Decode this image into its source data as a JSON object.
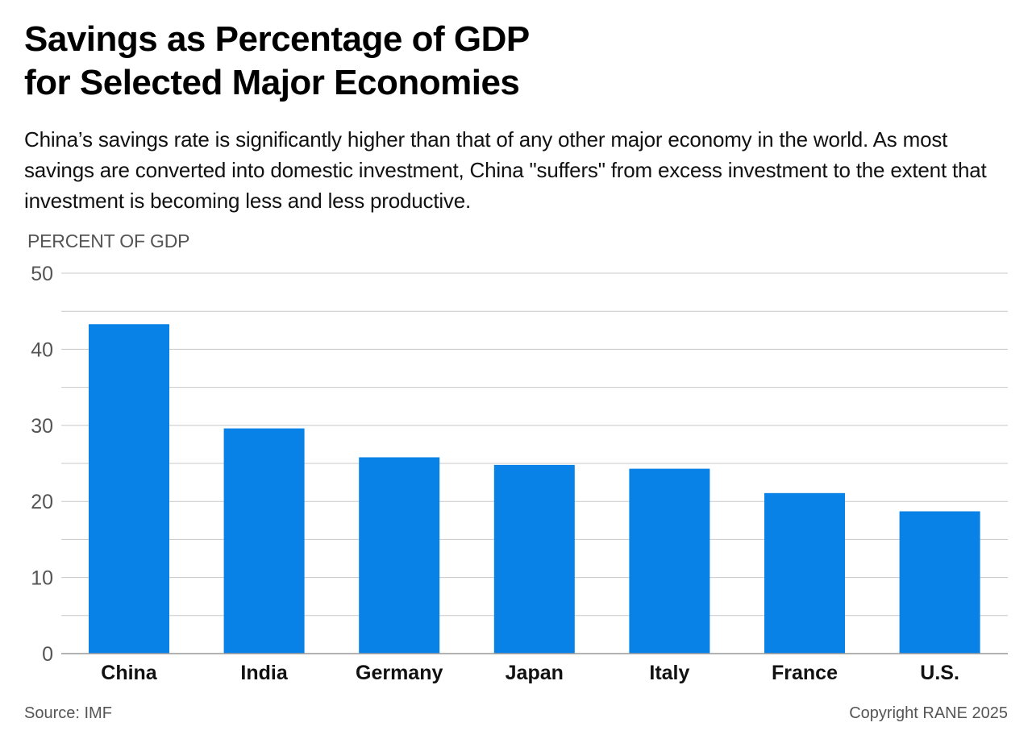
{
  "header": {
    "title_line1": "Savings as Percentage of GDP",
    "title_line2": "for Selected Major Economies",
    "subtitle": "China’s savings rate is significantly higher than that of any other major economy in the world. As most savings are converted into domestic investment, China \"suffers\" from excess investment to the extent that investment is becoming less and less productive."
  },
  "chart_data": {
    "type": "bar",
    "title": "Savings as Percentage of GDP for Selected Major Economies",
    "ylabel": "PERCENT OF GDP",
    "xlabel": "",
    "categories": [
      "China",
      "India",
      "Germany",
      "Japan",
      "Italy",
      "France",
      "U.S."
    ],
    "values": [
      43.3,
      29.6,
      25.8,
      24.8,
      24.3,
      21.1,
      18.7
    ],
    "ylim": [
      0,
      50
    ],
    "yticks": [
      0,
      10,
      20,
      30,
      40,
      50
    ],
    "grid": true,
    "bar_color": "#0882E6",
    "grid_color": "#C8C8C8",
    "axis_color": "#999999"
  },
  "footer": {
    "source": "Source: IMF",
    "copyright": "Copyright RANE 2025"
  }
}
